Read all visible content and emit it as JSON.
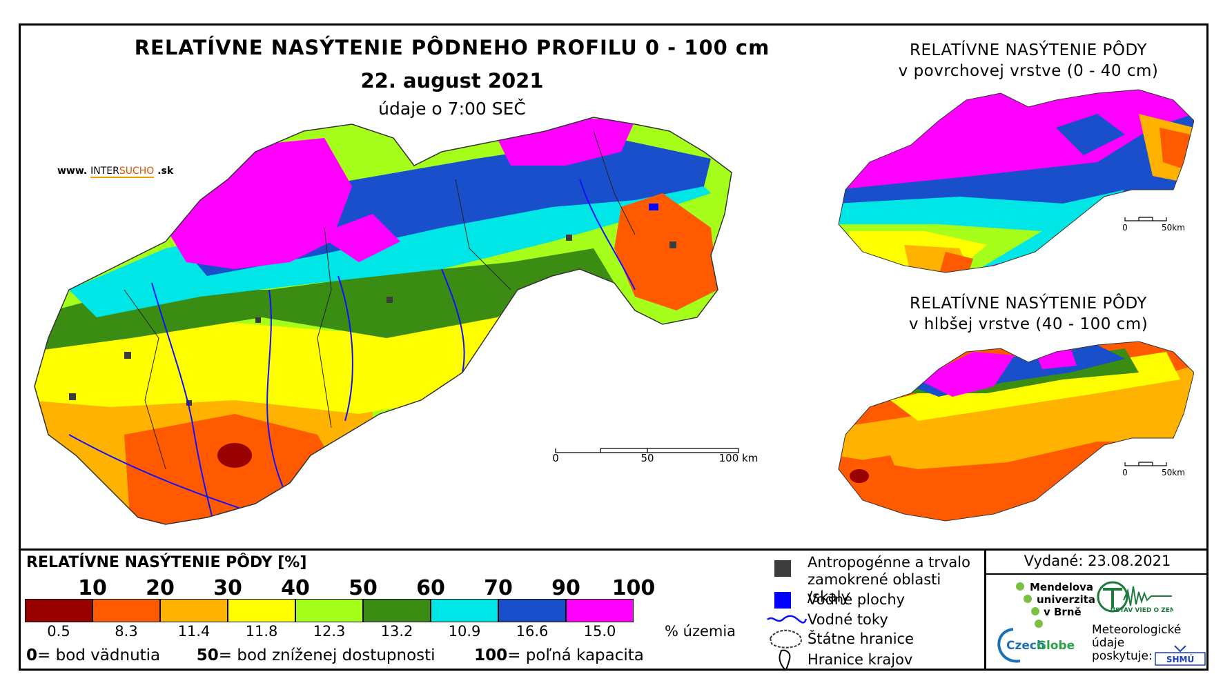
{
  "main_map": {
    "title": "RELATÍVNE NASÝTENIE PÔDNEHO PROFILU 0 - 100 cm",
    "date": "22. august 2021",
    "time": "údaje o 7:00 SEČ",
    "website_prefix": "www.",
    "website_brand_a": "INTER",
    "website_brand_b": "SUCHO",
    "website_suffix": ".sk",
    "scale_labels": [
      "0",
      "50",
      "100 km"
    ]
  },
  "top_inset": {
    "title_line1": "RELATÍVNE NASÝTENIE PÔDY",
    "title_line2": "v povrchovej vrstve (0 - 40 cm)",
    "scale_labels": [
      "0",
      "50km"
    ]
  },
  "bottom_inset": {
    "title_line1": "RELATÍVNE NASÝTENIE PÔDY",
    "title_line2": "v hlbšej vrstve (40 - 100 cm)",
    "scale_labels": [
      "0",
      "50km"
    ]
  },
  "legend": {
    "title": "RELATÍVNE NASÝTENIE PÔDY [%]",
    "class_bounds": [
      "10",
      "20",
      "30",
      "40",
      "50",
      "60",
      "70",
      "90",
      "100"
    ],
    "colors": [
      "#990000",
      "#ff5a00",
      "#ffb300",
      "#ffff00",
      "#a6ff1a",
      "#3a8c13",
      "#00e6e6",
      "#1a4fcc",
      "#ff00ff"
    ],
    "area_percent": [
      "0.5",
      "8.3",
      "11.4",
      "11.8",
      "12.3",
      "13.2",
      "10.9",
      "16.6",
      "15.0"
    ],
    "area_unit": "% územia",
    "definitions": [
      {
        "value": "0",
        "text": "= bod vädnutia"
      },
      {
        "value": "50",
        "text": "= bod zníženej dostupnosti"
      },
      {
        "value": "100",
        "text": "= poľná kapacita"
      }
    ]
  },
  "map_legend": {
    "urban": "Antropogénne a trvalo zamokrené oblasti /skaly",
    "water": "Vodné plochy",
    "rivers": "Vodné toky",
    "borders": "Štátne hranice",
    "regions": "Hranice krajov"
  },
  "issued": "Vydané: 23.08.2021",
  "logos": {
    "mendel_line1": "Mendelova",
    "mendel_line2": "univerzita",
    "mendel_line3": "v Brně",
    "czechglobe_a": "Czech",
    "czechglobe_b": "Globe",
    "uvoz": "ÚSTAV VIED O ZEMI",
    "shmu_label": "Meteorologické údaje poskytuje:",
    "shmu": "SHMÚ"
  }
}
